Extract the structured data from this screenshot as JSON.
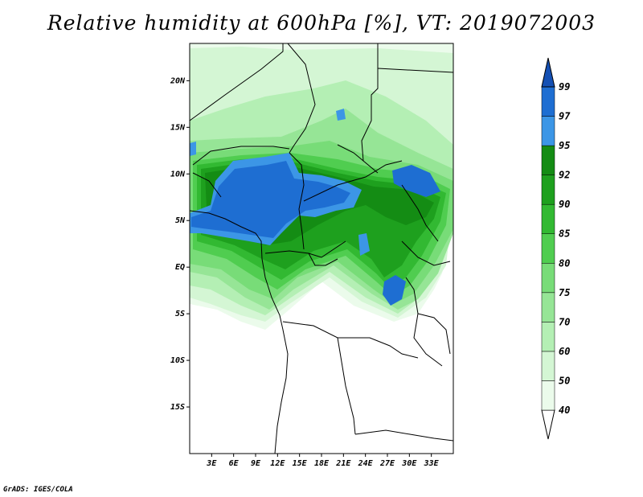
{
  "title": "Relative humidity at 600hPa [%], VT: 2019072003",
  "credit": "GrADS: IGES/COLA",
  "map": {
    "lon_range": [
      0,
      36
    ],
    "lat_range": [
      -20,
      24
    ],
    "lat_ticks": [
      {
        "value": 20,
        "label": "20N"
      },
      {
        "value": 15,
        "label": "15N"
      },
      {
        "value": 10,
        "label": "10N"
      },
      {
        "value": 5,
        "label": "5N"
      },
      {
        "value": 0,
        "label": "EQ"
      },
      {
        "value": -5,
        "label": "5S"
      },
      {
        "value": -10,
        "label": "10S"
      },
      {
        "value": -15,
        "label": "15S"
      }
    ],
    "lon_ticks": [
      {
        "value": 3,
        "label": "3E"
      },
      {
        "value": 6,
        "label": "6E"
      },
      {
        "value": 9,
        "label": "9E"
      },
      {
        "value": 12,
        "label": "12E"
      },
      {
        "value": 15,
        "label": "15E"
      },
      {
        "value": 18,
        "label": "18E"
      },
      {
        "value": 21,
        "label": "21E"
      },
      {
        "value": 24,
        "label": "24E"
      },
      {
        "value": 27,
        "label": "27E"
      },
      {
        "value": 30,
        "label": "30E"
      },
      {
        "value": 33,
        "label": "33E"
      }
    ]
  },
  "colorbar": {
    "levels": [
      "40",
      "50",
      "60",
      "70",
      "75",
      "80",
      "85",
      "90",
      "92",
      "95",
      "97",
      "99"
    ],
    "colors": [
      "#ebfbeb",
      "#d4f6d4",
      "#b4efb4",
      "#96e596",
      "#78dc78",
      "#50cd50",
      "#32b932",
      "#1ea01e",
      "#148c14",
      "#3c96e6",
      "#1e6ed2",
      "#1450b4"
    ]
  },
  "colors": {
    "land_outline": "#000000",
    "background": "#ffffff"
  }
}
